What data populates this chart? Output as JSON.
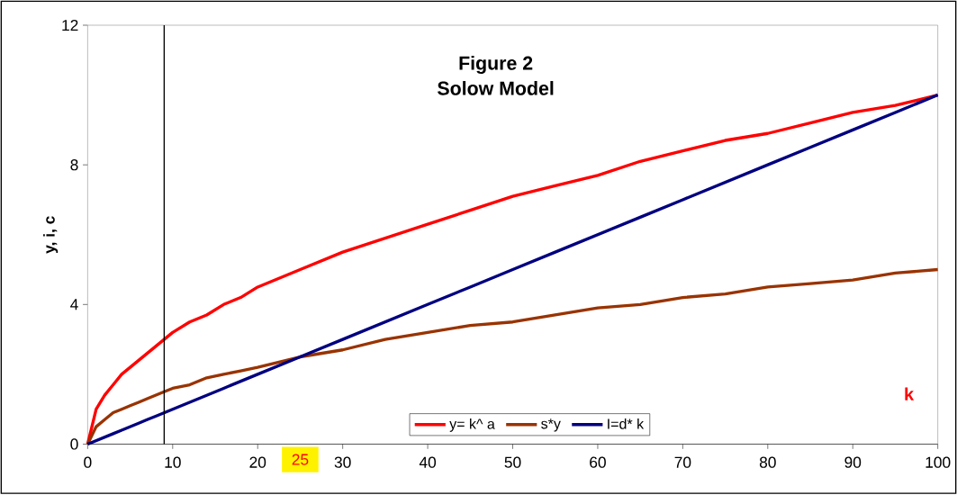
{
  "chart_data": {
    "type": "line",
    "title": "Figure 2",
    "subtitle": "Solow Model",
    "xlabel": "k",
    "ylabel": "y, i, c",
    "x": [
      0,
      1,
      2,
      3,
      4,
      5,
      6,
      7,
      8,
      9,
      10,
      12,
      14,
      16,
      18,
      20,
      25,
      30,
      35,
      40,
      45,
      50,
      55,
      60,
      65,
      70,
      75,
      80,
      85,
      90,
      95,
      100
    ],
    "series": [
      {
        "name": "y= k^ a",
        "color": "#ff0000",
        "values": [
          0,
          1.0,
          1.4,
          1.7,
          2.0,
          2.2,
          2.4,
          2.6,
          2.8,
          3.0,
          3.2,
          3.5,
          3.7,
          4.0,
          4.2,
          4.5,
          5.0,
          5.5,
          5.9,
          6.3,
          6.7,
          7.1,
          7.4,
          7.7,
          8.1,
          8.4,
          8.7,
          8.9,
          9.2,
          9.5,
          9.7,
          10.0
        ]
      },
      {
        "name": "s*y",
        "color": "#993300",
        "values": [
          0,
          0.5,
          0.7,
          0.9,
          1.0,
          1.1,
          1.2,
          1.3,
          1.4,
          1.5,
          1.6,
          1.7,
          1.9,
          2.0,
          2.1,
          2.2,
          2.5,
          2.7,
          3.0,
          3.2,
          3.4,
          3.5,
          3.7,
          3.9,
          4.0,
          4.2,
          4.3,
          4.5,
          4.6,
          4.7,
          4.9,
          5.0
        ]
      },
      {
        "name": "I=d* k",
        "color": "#000080",
        "values": [
          0,
          0.1,
          0.2,
          0.3,
          0.4,
          0.5,
          0.6,
          0.7,
          0.8,
          0.9,
          1.0,
          1.2,
          1.4,
          1.6,
          1.8,
          2.0,
          2.5,
          3.0,
          3.5,
          4.0,
          4.5,
          5.0,
          5.5,
          6.0,
          6.5,
          7.0,
          7.5,
          8.0,
          8.5,
          9.0,
          9.5,
          10.0
        ]
      }
    ],
    "xlim": [
      0,
      100
    ],
    "ylim": [
      0,
      12
    ],
    "xticks": [
      0,
      10,
      20,
      30,
      40,
      50,
      60,
      70,
      80,
      90,
      100
    ],
    "yticks": [
      0,
      4,
      8,
      12
    ],
    "ref_lines": [
      {
        "axis": "x",
        "value": 9,
        "color": "#000000"
      }
    ],
    "annotations": [
      {
        "text": "25",
        "x": 25
      }
    ],
    "legend": "bottom",
    "grid": false,
    "marker": "none",
    "line_style": "solid"
  }
}
